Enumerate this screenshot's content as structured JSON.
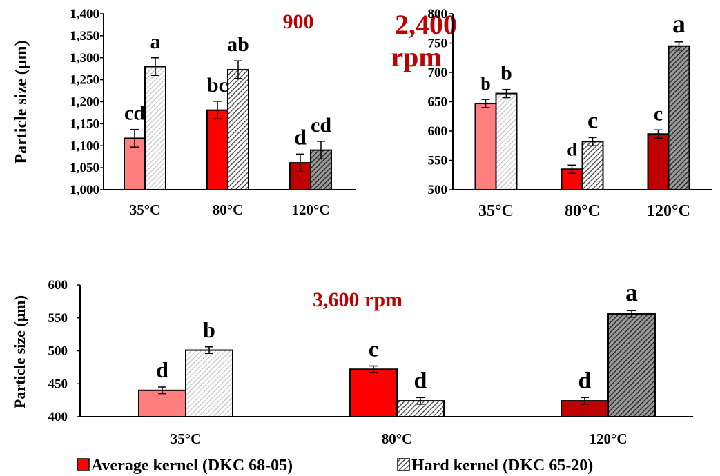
{
  "colors": {
    "avg_35": "#ff7f7f",
    "avg_80": "#ff0000",
    "avg_120": "#c00000",
    "hard_35": "#d9d9d9",
    "hard_80": "#606060",
    "hard_120": "#404040",
    "title": "#c00000"
  },
  "legend": {
    "average": "Average kernel (DKC 68-05)",
    "hard": "Hard kernel  (DKC 65-20)"
  },
  "chart_data": [
    {
      "type": "bar",
      "title": "900",
      "ylabel": "Particle size (µm)",
      "categories": [
        "35°C",
        "80°C",
        "120°C"
      ],
      "ylim": [
        1000,
        1400
      ],
      "yticks": [
        "1,000",
        "1,050",
        "1,100",
        "1,150",
        "1,200",
        "1,250",
        "1,300",
        "1,350",
        "1,400"
      ],
      "series": [
        {
          "name": "Average kernel (DKC 68-05)",
          "values": [
            1117,
            1181,
            1061
          ],
          "errors": [
            20,
            20,
            20
          ],
          "letters": [
            "cd",
            "bc",
            "d"
          ]
        },
        {
          "name": "Hard kernel  (DKC 65-20)",
          "values": [
            1280,
            1273,
            1090
          ],
          "errors": [
            20,
            20,
            20
          ],
          "letters": [
            "a",
            "ab",
            "cd"
          ]
        }
      ]
    },
    {
      "type": "bar",
      "title": "2,400",
      "title2": "rpm",
      "ylabel": "",
      "categories": [
        "35°C",
        "80°C",
        "120°C"
      ],
      "ylim": [
        500,
        800
      ],
      "yticks": [
        "500",
        "550",
        "600",
        "650",
        "700",
        "750",
        "800"
      ],
      "series": [
        {
          "name": "Average kernel (DKC 68-05)",
          "values": [
            647,
            535,
            595
          ],
          "errors": [
            7,
            7,
            7
          ],
          "letters": [
            "b",
            "d",
            "c"
          ]
        },
        {
          "name": "Hard kernel  (DKC 65-20)",
          "values": [
            664,
            582,
            745
          ],
          "errors": [
            7,
            7,
            7
          ],
          "letters": [
            "b",
            "c",
            "a"
          ]
        }
      ]
    },
    {
      "type": "bar",
      "title": "3,600 rpm",
      "ylabel": "Particle size (µm)",
      "categories": [
        "35°C",
        "80°C",
        "120°C"
      ],
      "ylim": [
        400,
        600
      ],
      "yticks": [
        "400",
        "450",
        "500",
        "550",
        "600"
      ],
      "series": [
        {
          "name": "Average kernel (DKC 68-05)",
          "values": [
            440,
            472,
            424
          ],
          "errors": [
            5,
            5,
            5
          ],
          "letters": [
            "d",
            "c",
            "d"
          ]
        },
        {
          "name": "Hard kernel  (DKC 65-20)",
          "values": [
            501,
            424,
            556
          ],
          "errors": [
            5,
            5,
            5
          ],
          "letters": [
            "b",
            "d",
            "a"
          ]
        }
      ]
    }
  ]
}
